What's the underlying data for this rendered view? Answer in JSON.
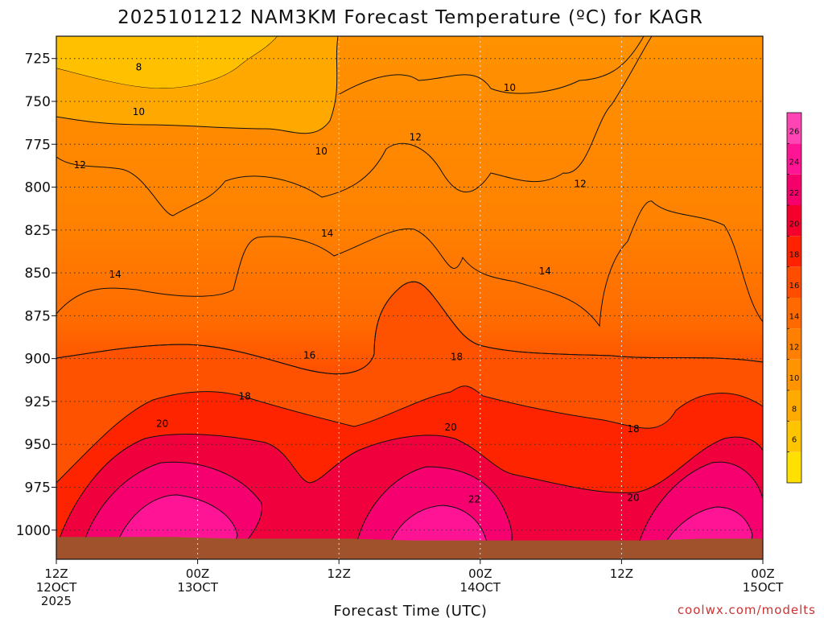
{
  "chart_data": {
    "type": "heatmap",
    "title": "2025101212 NAM3KM Forecast Temperature (ºC) for KAGR",
    "xlabel": "Forecast Time (UTC)",
    "ylabel": "",
    "credit": "coolwx.com/modelts",
    "y_axis": {
      "ticks": [
        725,
        750,
        775,
        800,
        825,
        850,
        875,
        900,
        925,
        950,
        975,
        1000
      ],
      "tick_labels": [
        "725",
        "750",
        "775",
        "800",
        "825",
        "850",
        "875",
        "900",
        "925",
        "950",
        "975",
        "1000"
      ],
      "range": [
        712,
        1017
      ],
      "inverted": true
    },
    "x_axis": {
      "hours": [
        0,
        12,
        24,
        36,
        48,
        60
      ],
      "tick_labels": [
        [
          "12Z",
          "12OCT",
          "2025"
        ],
        [
          "00Z",
          "13OCT"
        ],
        [
          "12Z"
        ],
        [
          "00Z",
          "14OCT"
        ],
        [
          "12Z"
        ],
        [
          "00Z",
          "15OCT"
        ]
      ],
      "range": [
        0,
        60
      ]
    },
    "grid": true,
    "colorbar": {
      "levels": [
        4,
        6,
        8,
        10,
        12,
        14,
        16,
        18,
        20,
        22,
        24,
        26,
        28
      ],
      "tick_values": [
        6,
        8,
        10,
        12,
        14,
        16,
        18,
        20,
        22,
        24,
        26
      ],
      "tick_labels": [
        "6",
        "8",
        "10",
        "12",
        "14",
        "16",
        "18",
        "20",
        "22",
        "24",
        "26"
      ],
      "colors": [
        "#ffe000",
        "#ffc400",
        "#ffaa00",
        "#ff9400",
        "#ff8000",
        "#ff6a00",
        "#ff4d00",
        "#ff2200",
        "#f5002c",
        "#f5006a",
        "#ff1493",
        "#ff44b4"
      ]
    },
    "contour_labels": [
      {
        "value": 8,
        "text": "8",
        "hour": 7.0,
        "p": 730
      },
      {
        "value": 10,
        "text": "10",
        "hour": 7.0,
        "p": 756
      },
      {
        "value": 10,
        "text": "10",
        "hour": 22.5,
        "p": 779
      },
      {
        "value": 10,
        "text": "10",
        "hour": 38.5,
        "p": 742
      },
      {
        "value": 12,
        "text": "12",
        "hour": 2.0,
        "p": 787
      },
      {
        "value": 12,
        "text": "12",
        "hour": 30.5,
        "p": 771
      },
      {
        "value": 12,
        "text": "12",
        "hour": 44.5,
        "p": 798
      },
      {
        "value": 14,
        "text": "14",
        "hour": 5.0,
        "p": 851
      },
      {
        "value": 14,
        "text": "14",
        "hour": 23.0,
        "p": 827
      },
      {
        "value": 14,
        "text": "14",
        "hour": 41.5,
        "p": 849
      },
      {
        "value": 16,
        "text": "16",
        "hour": 21.5,
        "p": 898
      },
      {
        "value": 18,
        "text": "18",
        "hour": 16.0,
        "p": 922
      },
      {
        "value": 18,
        "text": "18",
        "hour": 34.0,
        "p": 899
      },
      {
        "value": 18,
        "text": "18",
        "hour": 49.0,
        "p": 941
      },
      {
        "value": 20,
        "text": "20",
        "hour": 9.0,
        "p": 938
      },
      {
        "value": 20,
        "text": "20",
        "hour": 33.5,
        "p": 940
      },
      {
        "value": 20,
        "text": "20",
        "hour": 49.0,
        "p": 981
      },
      {
        "value": 22,
        "text": "22",
        "hour": 35.5,
        "p": 982
      }
    ],
    "surface_pressure_hPa": [
      1004,
      1004,
      1004,
      1005,
      1005,
      1005,
      1006,
      1006,
      1006,
      1006,
      1006,
      1005,
      1005
    ]
  }
}
